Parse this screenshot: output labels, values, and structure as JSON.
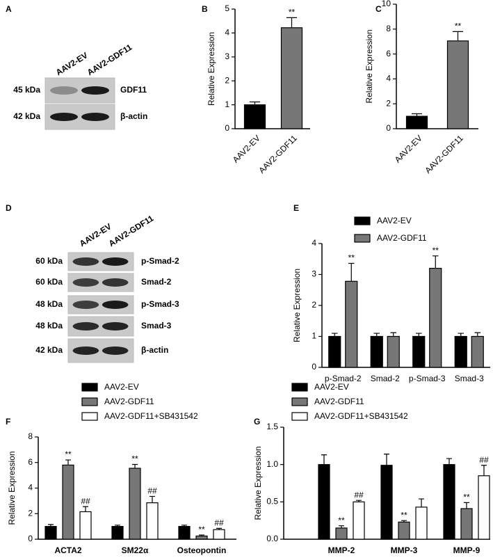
{
  "chart_data": [
    {
      "type": "bar",
      "panel_label": "B",
      "y_label": "Relative Expression",
      "categories": [
        "AAV2-EV",
        "AAV2-GDF11"
      ],
      "values": [
        1.0,
        4.22
      ],
      "errors": [
        0.12,
        0.42
      ],
      "annotations": [
        null,
        "**"
      ],
      "colors": [
        "#000000",
        "#777777"
      ],
      "ylim": [
        0,
        5
      ],
      "yticks": [
        0,
        1,
        2,
        3,
        4,
        5
      ]
    },
    {
      "type": "bar",
      "panel_label": "C",
      "y_label": "Relative Expression",
      "categories": [
        "AAV2-EV",
        "AAV2-GDF11"
      ],
      "values": [
        1.0,
        7.05
      ],
      "errors": [
        0.2,
        0.75
      ],
      "annotations": [
        null,
        "**"
      ],
      "colors": [
        "#000000",
        "#777777"
      ],
      "ylim": [
        0,
        10
      ],
      "yticks": [
        0,
        2,
        4,
        6,
        8,
        10
      ]
    },
    {
      "type": "bar",
      "panel_label": "E",
      "y_label": "Relative Expression",
      "categories": [
        "p-Smad-2",
        "Smad-2",
        "p-Smad-3",
        "Smad-3"
      ],
      "series": [
        {
          "name": "AAV2-EV",
          "color": "#000000",
          "values": [
            1.0,
            1.0,
            1.0,
            1.0
          ],
          "errors": [
            0.1,
            0.1,
            0.1,
            0.1
          ],
          "annotations": [
            null,
            null,
            null,
            null
          ]
        },
        {
          "name": "AAV2-GDF11",
          "color": "#777777",
          "values": [
            2.78,
            1.0,
            3.2,
            1.0
          ],
          "errors": [
            0.58,
            0.12,
            0.4,
            0.12
          ],
          "annotations": [
            "**",
            null,
            "**",
            null
          ]
        }
      ],
      "ylim": [
        0,
        4
      ],
      "yticks": [
        0,
        1,
        2,
        3,
        4
      ]
    },
    {
      "type": "bar",
      "panel_label": "F",
      "y_label": "Relative Expression",
      "categories": [
        "ACTA2",
        "SM22α",
        "Osteopontin"
      ],
      "series": [
        {
          "name": "AAV2-EV",
          "color": "#000000",
          "values": [
            1.0,
            1.0,
            1.0
          ],
          "errors": [
            0.15,
            0.1,
            0.1
          ],
          "annotations": [
            null,
            null,
            null
          ]
        },
        {
          "name": "AAV2-GDF11",
          "color": "#777777",
          "values": [
            5.8,
            5.55,
            0.25
          ],
          "errors": [
            0.4,
            0.3,
            0.08
          ],
          "annotations": [
            "**",
            "**",
            "**"
          ]
        },
        {
          "name": "AAV2-GDF11+SB431542",
          "color": "#ffffff",
          "values": [
            2.15,
            2.85,
            0.75
          ],
          "errors": [
            0.4,
            0.5,
            0.1
          ],
          "annotations": [
            "##",
            "##",
            "##"
          ]
        }
      ],
      "ylim": [
        0,
        8
      ],
      "yticks": [
        0,
        2,
        4,
        6,
        8
      ]
    },
    {
      "type": "bar",
      "panel_label": "G",
      "y_label": "Relative Expression",
      "categories": [
        "MMP-2",
        "MMP-3",
        "MMP-9"
      ],
      "series": [
        {
          "name": "AAV2-EV",
          "color": "#000000",
          "values": [
            1.0,
            0.99,
            1.0
          ],
          "errors": [
            0.13,
            0.15,
            0.08
          ],
          "annotations": [
            null,
            null,
            null
          ]
        },
        {
          "name": "AAV2-GDF11",
          "color": "#777777",
          "values": [
            0.15,
            0.23,
            0.41
          ],
          "errors": [
            0.03,
            0.02,
            0.08
          ],
          "annotations": [
            "**",
            "**",
            "**"
          ]
        },
        {
          "name": "AAV2-GDF11+SB431542",
          "color": "#ffffff",
          "values": [
            0.5,
            0.43,
            0.85
          ],
          "errors": [
            0.02,
            0.11,
            0.14
          ],
          "annotations": [
            "##",
            null,
            "##"
          ]
        }
      ],
      "ylim": [
        0,
        1.5
      ],
      "yticks": [
        {
          "value": 0,
          "label": "0.0"
        },
        {
          "value": 0.5,
          "label": "0.5"
        },
        {
          "value": 1,
          "label": "1.0"
        },
        {
          "value": 1.5,
          "label": "1.5"
        }
      ]
    }
  ],
  "blots": [
    {
      "panel_label": "A",
      "lanes": [
        "AAV2-EV",
        "AAV2-GDF11"
      ],
      "rows": [
        {
          "size": "45 kDa",
          "protein": "GDF11"
        },
        {
          "size": "42 kDa",
          "protein": "β-actin"
        }
      ]
    },
    {
      "panel_label": "D",
      "lanes": [
        "AAV2-EV",
        "AAV2-GDF11"
      ],
      "rows": [
        {
          "size": "60 kDa",
          "protein": "p-Smad-2"
        },
        {
          "size": "60 kDa",
          "protein": "Smad-2"
        },
        {
          "size": "48 kDa",
          "protein": "p-Smad-3"
        },
        {
          "size": "48 kDa",
          "protein": "Smad-3"
        },
        {
          "size": "42 kDa",
          "protein": "β-actin"
        }
      ]
    }
  ]
}
